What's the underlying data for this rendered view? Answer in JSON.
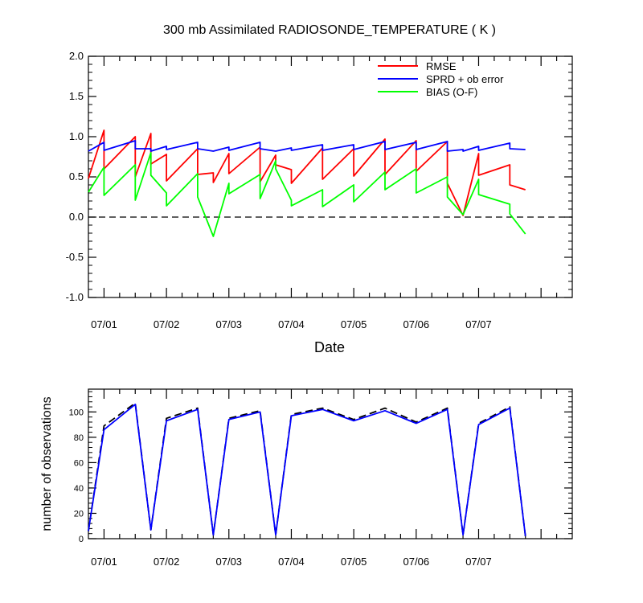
{
  "chart_data": [
    {
      "type": "line",
      "title": "300 mb Assimilated RADIOSONDE_TEMPERATURE ( K )",
      "xlabel": "Date",
      "ylabel": "",
      "ylim": [
        -1.0,
        2.0
      ],
      "yticks": [
        "-1.0",
        "-0.5",
        "0.0",
        "0.5",
        "1.0",
        "1.5",
        "2.0"
      ],
      "xticks": [
        "07/01",
        "07/02",
        "07/03",
        "07/04",
        "07/05",
        "07/06",
        "07/07"
      ],
      "legend_position": "top-right",
      "x": [
        "06/30 18Z",
        "06/30 18Z",
        "07/01 00Z",
        "07/01 00Z",
        "07/01 12Z",
        "07/01 12Z",
        "07/01 18Z",
        "07/01 18Z",
        "07/02 00Z",
        "07/02 00Z",
        "07/02 12Z",
        "07/02 12Z",
        "07/02 18Z",
        "07/02 18Z",
        "07/03 00Z",
        "07/03 00Z",
        "07/03 12Z",
        "07/03 12Z",
        "07/03 18Z",
        "07/03 18Z",
        "07/04 00Z",
        "07/04 00Z",
        "07/04 12Z",
        "07/04 12Z",
        "07/05 00Z",
        "07/05 00Z",
        "07/05 12Z",
        "07/05 12Z",
        "07/06 00Z",
        "07/06 00Z",
        "07/06 12Z",
        "07/06 12Z",
        "07/06 18Z",
        "07/06 18Z",
        "07/07 00Z",
        "07/07 00Z",
        "07/07 12Z",
        "07/07 12Z",
        "07/07 18Z"
      ],
      "reference_line": 0,
      "series": [
        {
          "name": "RMSE",
          "color": "#ff0000",
          "values": [
            0.48,
            0.48,
            1.08,
            0.6,
            1.0,
            0.5,
            1.04,
            0.66,
            0.78,
            0.45,
            0.85,
            0.53,
            0.55,
            0.43,
            0.79,
            0.54,
            0.87,
            0.44,
            0.77,
            0.65,
            0.59,
            0.42,
            0.86,
            0.47,
            0.85,
            0.51,
            0.97,
            0.53,
            0.95,
            0.57,
            0.94,
            0.42,
            0.02,
            0.02,
            0.79,
            0.52,
            0.65,
            0.4,
            0.34
          ]
        },
        {
          "name": "SPRD + ob error",
          "color": "#0000ff",
          "values": [
            0.82,
            0.82,
            0.93,
            0.83,
            0.95,
            0.85,
            0.85,
            0.82,
            0.88,
            0.84,
            0.93,
            0.85,
            0.82,
            0.82,
            0.87,
            0.83,
            0.93,
            0.85,
            0.82,
            0.82,
            0.86,
            0.83,
            0.9,
            0.83,
            0.9,
            0.84,
            0.94,
            0.84,
            0.93,
            0.84,
            0.94,
            0.82,
            0.84,
            0.82,
            0.88,
            0.83,
            0.92,
            0.85,
            0.84
          ]
        },
        {
          "name": "BIAS (O-F)",
          "color": "#00ff00",
          "values": [
            0.31,
            0.31,
            0.62,
            0.27,
            0.65,
            0.21,
            0.8,
            0.52,
            0.3,
            0.14,
            0.54,
            0.25,
            -0.24,
            -0.24,
            0.42,
            0.29,
            0.53,
            0.23,
            0.7,
            0.6,
            0.21,
            0.14,
            0.34,
            0.13,
            0.4,
            0.19,
            0.56,
            0.34,
            0.6,
            0.3,
            0.5,
            0.25,
            0.03,
            0.03,
            0.47,
            0.28,
            0.16,
            0.04,
            -0.21
          ]
        }
      ]
    },
    {
      "type": "line",
      "title": "",
      "xlabel": "",
      "ylabel": "number of observations",
      "ylim": [
        0,
        118
      ],
      "yticks": [
        "0",
        "20",
        "40",
        "60",
        "80",
        "100"
      ],
      "xticks": [
        "07/01",
        "07/02",
        "07/03",
        "07/04",
        "07/05",
        "07/06",
        "07/07"
      ],
      "x": [
        "06/30 18Z",
        "07/01 00Z",
        "07/01 12Z",
        "07/01 18Z",
        "07/02 00Z",
        "07/02 12Z",
        "07/02 18Z",
        "07/03 00Z",
        "07/03 12Z",
        "07/03 18Z",
        "07/04 00Z",
        "07/04 12Z",
        "07/05 00Z",
        "07/05 12Z",
        "07/06 00Z",
        "07/06 12Z",
        "07/06 18Z",
        "07/07 00Z",
        "07/07 12Z",
        "07/07 18Z"
      ],
      "series": [
        {
          "color": "#0000ff",
          "dash": "solid",
          "values": [
            6,
            86,
            106,
            7,
            93,
            102,
            3,
            94,
            100,
            3,
            97,
            102,
            93,
            101,
            91,
            102,
            3,
            90,
            103,
            2
          ]
        },
        {
          "color": "#000000",
          "dash": "dashed",
          "values": [
            6,
            89,
            107,
            7,
            95,
            103,
            3,
            95,
            101,
            3,
            98,
            103,
            94,
            103,
            92,
            103,
            3,
            91,
            104,
            2
          ]
        }
      ]
    }
  ]
}
